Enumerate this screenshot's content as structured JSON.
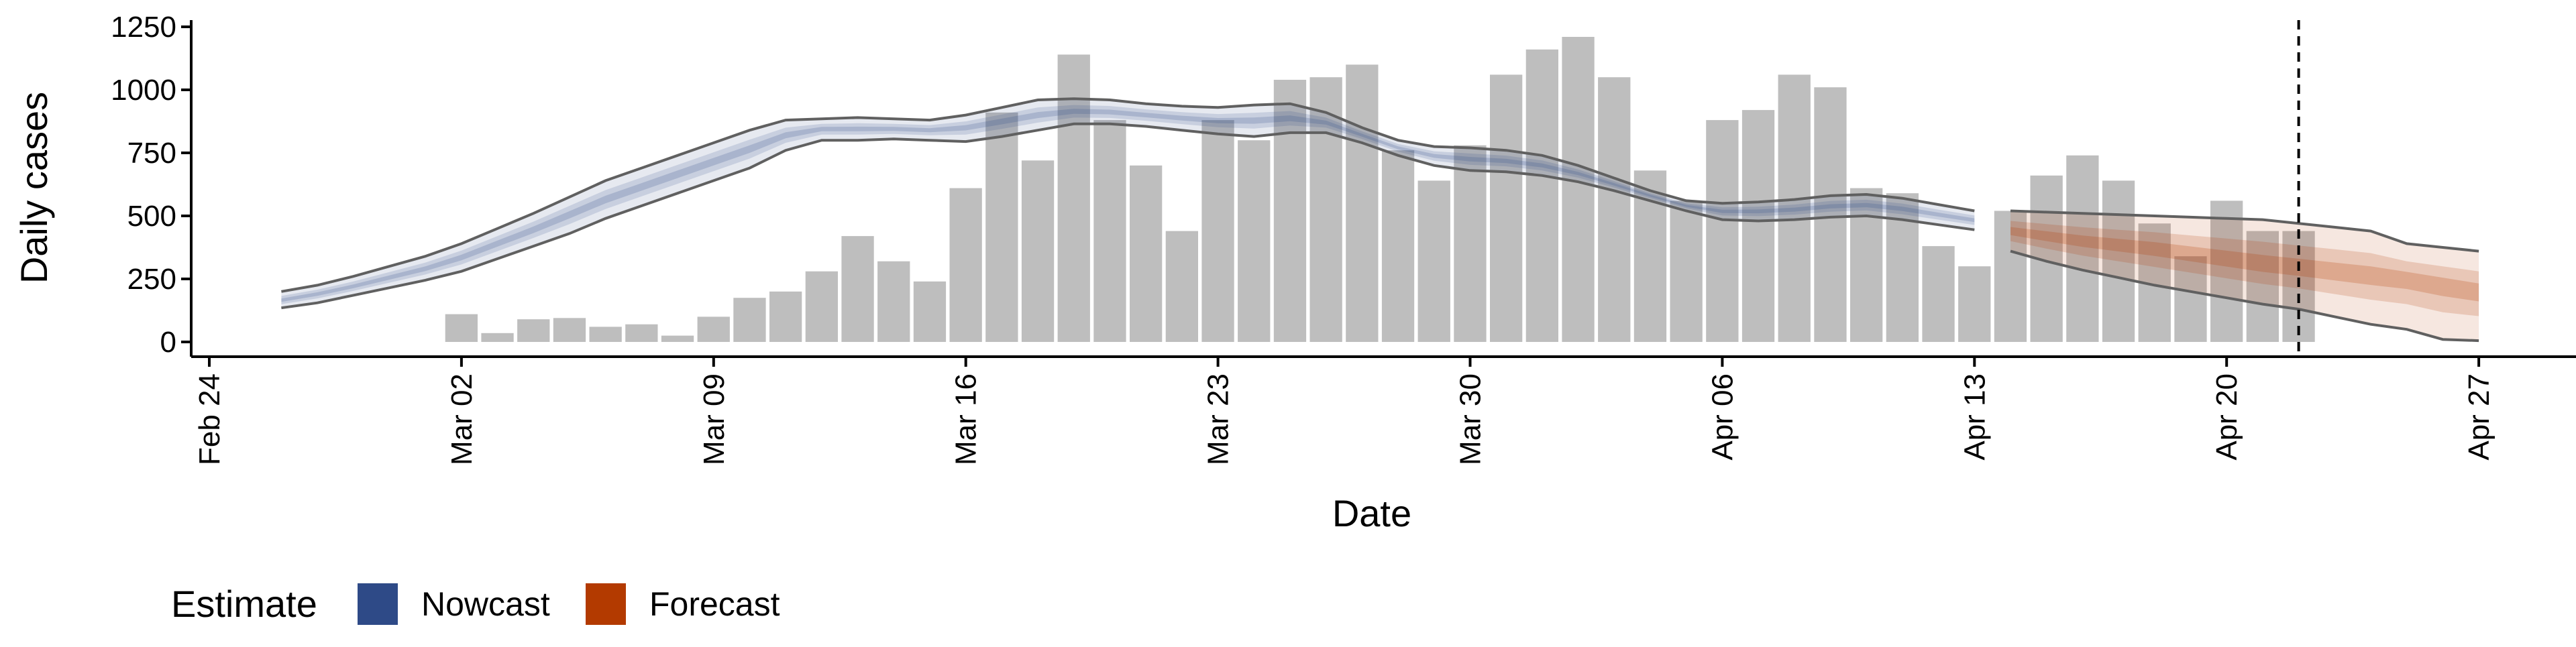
{
  "chart_data": {
    "type": "bar",
    "title": "",
    "xlabel": "Date",
    "ylabel": "Daily cases",
    "ylim": [
      0,
      1250
    ],
    "y_ticks": [
      0,
      250,
      500,
      750,
      1000,
      1250
    ],
    "y_tick_labels": [
      "0",
      "250",
      "500",
      "750",
      "1000",
      "1250"
    ],
    "x_ticks": [
      "2020-02-24",
      "2020-03-02",
      "2020-03-09",
      "2020-03-16",
      "2020-03-23",
      "2020-03-30",
      "2020-04-06",
      "2020-04-13",
      "2020-04-20",
      "2020-04-27"
    ],
    "x_tick_labels": [
      "Feb 24",
      "Mar 02",
      "Mar 09",
      "Mar 16",
      "Mar 23",
      "Mar 30",
      "Apr 06",
      "Apr 13",
      "Apr 20",
      "Apr 27"
    ],
    "xlim": [
      "2024-02-23",
      "2024-04-30"
    ],
    "vline_date": "2020-04-22",
    "grid": false,
    "legend": {
      "title": "Estimate",
      "position": "bottom-left",
      "items": [
        {
          "label": "Nowcast",
          "color": "#2E4A87"
        },
        {
          "label": "Forecast",
          "color": "#B33A00"
        }
      ]
    },
    "colors": {
      "bars": "#BEBEBE",
      "nowcast": "#2E4A87",
      "forecast": "#B33A00",
      "outer_bound_line": "#606060"
    },
    "reported_cases": {
      "dates": [
        "2020-03-02",
        "2020-03-03",
        "2020-03-04",
        "2020-03-05",
        "2020-03-06",
        "2020-03-07",
        "2020-03-08",
        "2020-03-09",
        "2020-03-10",
        "2020-03-11",
        "2020-03-12",
        "2020-03-13",
        "2020-03-14",
        "2020-03-15",
        "2020-03-16",
        "2020-03-17",
        "2020-03-18",
        "2020-03-19",
        "2020-03-20",
        "2020-03-21",
        "2020-03-22",
        "2020-03-23",
        "2020-03-24",
        "2020-03-25",
        "2020-03-26",
        "2020-03-27",
        "2020-03-28",
        "2020-03-29",
        "2020-03-30",
        "2020-03-31",
        "2020-04-01",
        "2020-04-02",
        "2020-04-03",
        "2020-04-04",
        "2020-04-05",
        "2020-04-06",
        "2020-04-07",
        "2020-04-08",
        "2020-04-09",
        "2020-04-10",
        "2020-04-11",
        "2020-04-12",
        "2020-04-13",
        "2020-04-14",
        "2020-04-15",
        "2020-04-16",
        "2020-04-17",
        "2020-04-18",
        "2020-04-19",
        "2020-04-20",
        "2020-04-21",
        "2020-04-22"
      ],
      "values": [
        110,
        35,
        90,
        95,
        60,
        70,
        25,
        100,
        175,
        200,
        280,
        420,
        320,
        240,
        610,
        910,
        720,
        1140,
        880,
        700,
        440,
        880,
        800,
        1040,
        1050,
        1100,
        760,
        640,
        780,
        1060,
        1160,
        1210,
        1050,
        680,
        560,
        880,
        920,
        1060,
        1010,
        610,
        590,
        380,
        300,
        520,
        660,
        740,
        640,
        470,
        340,
        560,
        440,
        440
      ]
    },
    "nowcast": {
      "dates": [
        "2020-02-26",
        "2020-02-27",
        "2020-02-28",
        "2020-02-29",
        "2020-03-01",
        "2020-03-02",
        "2020-03-03",
        "2020-03-04",
        "2020-03-05",
        "2020-03-06",
        "2020-03-07",
        "2020-03-08",
        "2020-03-09",
        "2020-03-10",
        "2020-03-11",
        "2020-03-12",
        "2020-03-13",
        "2020-03-14",
        "2020-03-15",
        "2020-03-16",
        "2020-03-17",
        "2020-03-18",
        "2020-03-19",
        "2020-03-20",
        "2020-03-21",
        "2020-03-22",
        "2020-03-23",
        "2020-03-24",
        "2020-03-25",
        "2020-03-26",
        "2020-03-27",
        "2020-03-28",
        "2020-03-29",
        "2020-03-30",
        "2020-03-31",
        "2020-04-01",
        "2020-04-02",
        "2020-04-03",
        "2020-04-04",
        "2020-04-05",
        "2020-04-06",
        "2020-04-07",
        "2020-04-08",
        "2020-04-09",
        "2020-04-10",
        "2020-04-11",
        "2020-04-12",
        "2020-04-13"
      ],
      "lower": [
        135,
        155,
        185,
        215,
        245,
        280,
        330,
        380,
        430,
        490,
        540,
        590,
        640,
        690,
        760,
        800,
        800,
        805,
        800,
        795,
        815,
        840,
        865,
        865,
        855,
        840,
        825,
        815,
        830,
        830,
        790,
        740,
        700,
        680,
        675,
        660,
        635,
        600,
        560,
        520,
        485,
        480,
        485,
        495,
        500,
        485,
        465,
        445
      ],
      "upper": [
        200,
        225,
        260,
        300,
        340,
        390,
        450,
        510,
        575,
        640,
        690,
        740,
        790,
        840,
        880,
        885,
        890,
        885,
        880,
        900,
        930,
        960,
        965,
        960,
        945,
        935,
        930,
        940,
        945,
        910,
        850,
        800,
        775,
        770,
        760,
        740,
        700,
        650,
        600,
        560,
        550,
        555,
        565,
        580,
        585,
        570,
        545,
        520
      ],
      "median": [
        165,
        190,
        220,
        255,
        290,
        335,
        390,
        445,
        505,
        565,
        615,
        665,
        715,
        765,
        820,
        845,
        845,
        845,
        840,
        850,
        875,
        900,
        915,
        912,
        900,
        888,
        878,
        878,
        887,
        870,
        820,
        770,
        738,
        725,
        718,
        700,
        668,
        625,
        580,
        540,
        518,
        518,
        525,
        538,
        543,
        528,
        505,
        483
      ]
    },
    "forecast": {
      "dates": [
        "2020-04-14",
        "2020-04-15",
        "2020-04-16",
        "2020-04-17",
        "2020-04-18",
        "2020-04-19",
        "2020-04-20",
        "2020-04-21",
        "2020-04-22",
        "2020-04-23",
        "2020-04-24",
        "2020-04-25",
        "2020-04-26",
        "2020-04-27"
      ],
      "lower": [
        360,
        320,
        285,
        255,
        225,
        200,
        175,
        150,
        130,
        100,
        70,
        50,
        10,
        5
      ],
      "upper": [
        520,
        515,
        510,
        505,
        500,
        495,
        490,
        485,
        470,
        455,
        440,
        390,
        375,
        360
      ],
      "median": [
        440,
        420,
        400,
        385,
        370,
        350,
        330,
        310,
        295,
        280,
        265,
        250,
        225,
        200
      ]
    }
  }
}
